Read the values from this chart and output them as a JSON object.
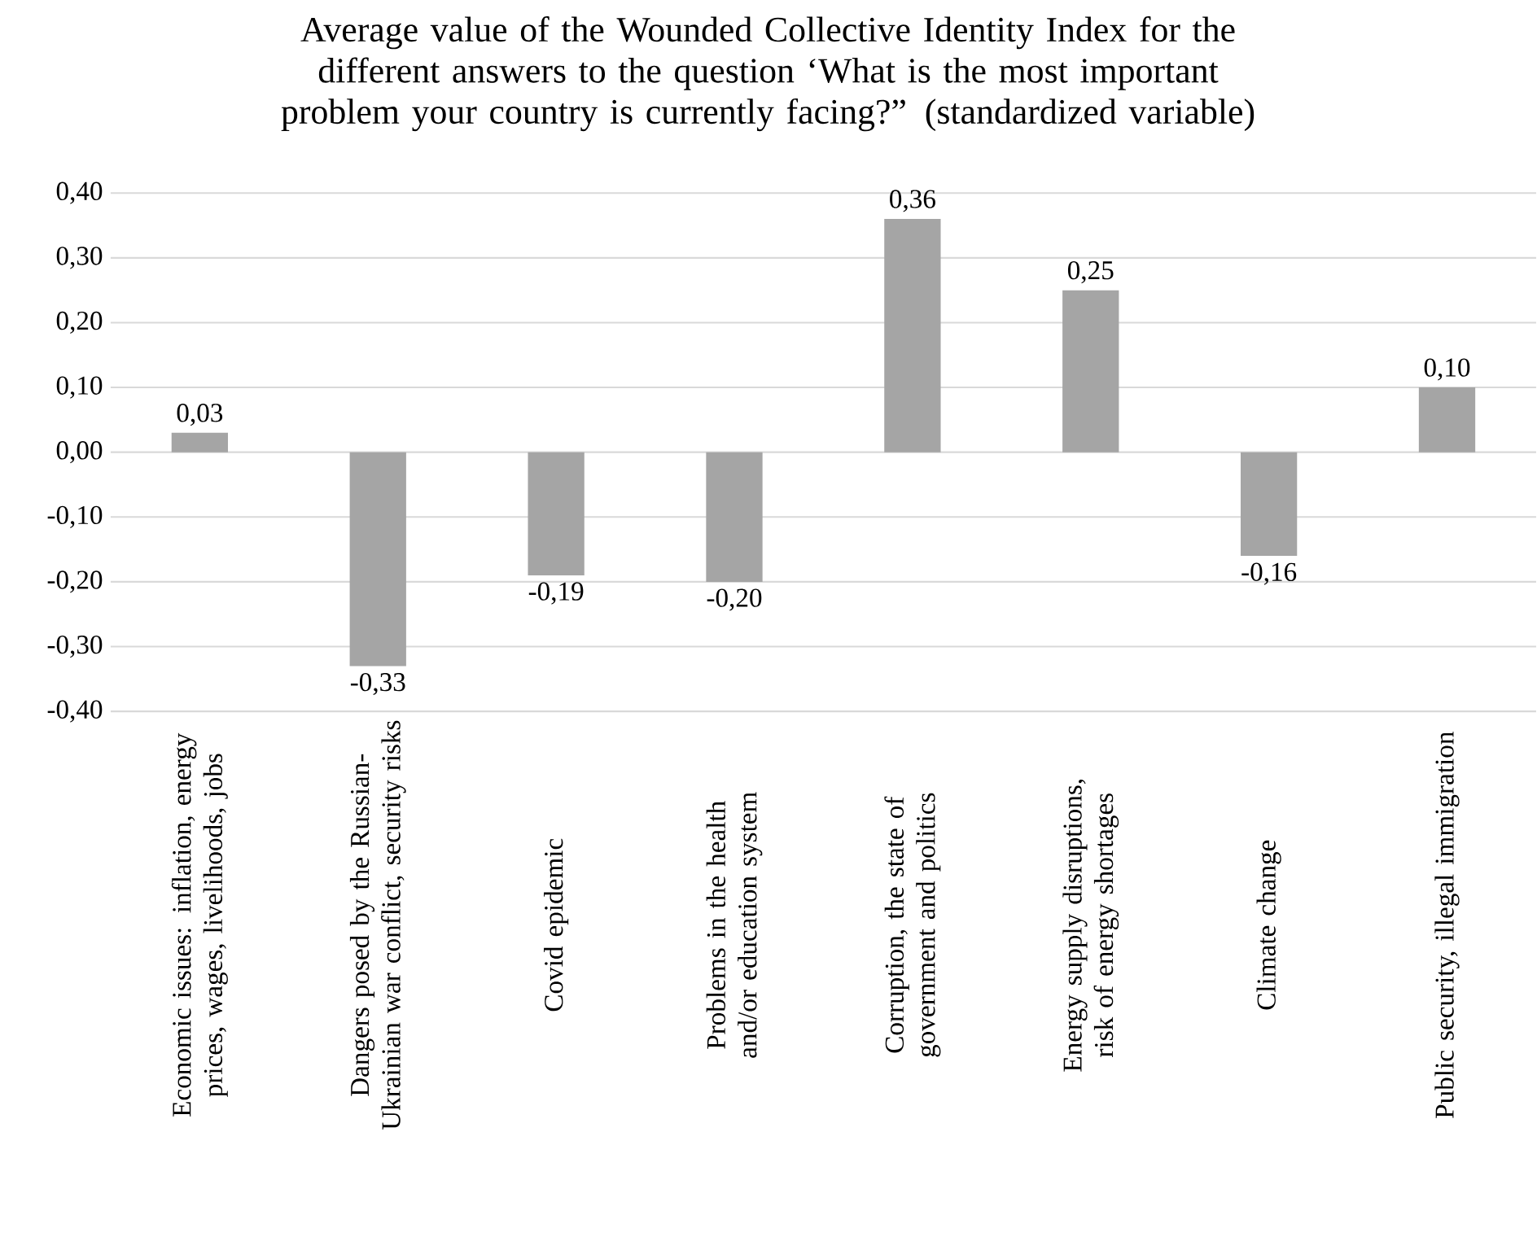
{
  "chart_data": {
    "type": "bar",
    "title": "Average value of the Wounded Collective Identity Index for the different answers to the question ‘What is the most important problem your country is currently facing?” (standardized variable)",
    "categories": [
      "Economic issues: inflation, energy prices, wages, livelihoods, jobs",
      "Dangers posed by the Russian-Ukrainian war conflict, security risks",
      "Covid epidemic",
      "Problems in the health and/or education system",
      "Corruption, the state of government and politics",
      "Energy supply disruptions, risk of energy shortages",
      "Climate change",
      "Public security, illegal immigration"
    ],
    "values": [
      0.03,
      -0.33,
      -0.19,
      -0.2,
      0.36,
      0.25,
      -0.16,
      0.1
    ],
    "value_labels": [
      "0,03",
      "-0,33",
      "-0,19",
      "-0,20",
      "0,36",
      "0,25",
      "-0,16",
      "0,10"
    ],
    "color": "#a5a5a5",
    "ylim": [
      -0.4,
      0.4
    ],
    "yticks": [
      {
        "value": -0.4,
        "label": "-0,40"
      },
      {
        "value": -0.3,
        "label": "-0,30"
      },
      {
        "value": -0.2,
        "label": "-0,20"
      },
      {
        "value": -0.1,
        "label": "-0,10"
      },
      {
        "value": 0,
        "label": "0,00"
      },
      {
        "value": 0.1,
        "label": "0,10"
      },
      {
        "value": 0.2,
        "label": "0,20"
      },
      {
        "value": 0.3,
        "label": "0,30"
      },
      {
        "value": 0.4,
        "label": "0,40"
      }
    ],
    "grid": "y"
  }
}
